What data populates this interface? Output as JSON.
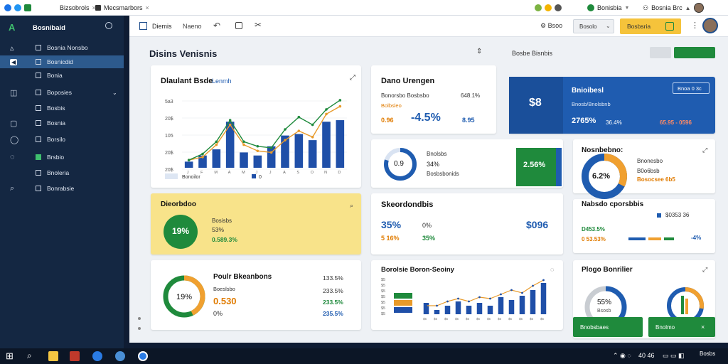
{
  "browser": {
    "tabs": [
      {
        "label": "Bizsobrols"
      },
      {
        "label": "Mecsmarbors"
      },
      {
        "label": "Bonisbia"
      },
      {
        "label": "Bosnia Brc"
      }
    ]
  },
  "sidebar": {
    "brand": "Bosnibaid",
    "items": [
      {
        "label": "Bosnia Nonsbo"
      },
      {
        "label": "Bosnicdid"
      },
      {
        "label": "Bonia"
      },
      {
        "label": "Boposies"
      },
      {
        "label": "Bosbis"
      },
      {
        "label": "Bosnia"
      },
      {
        "label": "Borsilo"
      },
      {
        "label": "Brsbio"
      },
      {
        "label": "Bnoleria"
      },
      {
        "label": "Bonrabsie"
      }
    ]
  },
  "appbar": {
    "tabs": [
      {
        "label": "Diemis"
      },
      {
        "label": "Naeno"
      }
    ],
    "search_label": "Bsoo",
    "select_value": "Bosolo",
    "cta_label": "Bosbsria"
  },
  "page": {
    "title": "Disins Venisnis",
    "right_title": "Bosbe Bisnbis"
  },
  "cards": {
    "chart1": {
      "title": "Dlaulant Bsde",
      "subtitle": "Lenmh",
      "legend1": "Bonoilor",
      "legend2": "0"
    },
    "stats1": {
      "title": "Dano Urengen",
      "l1": "Bonorsbo Bosbsbo",
      "l1v": "648.1%",
      "l2": "Bolbsleo",
      "l3": "0.96",
      "big": "-4.5%",
      "big2": "8.95"
    },
    "blue": {
      "title": "Bnioibesl",
      "button": "Bnoa 0 3c",
      "big": "$8",
      "r1": "Bnosb/Bnolsbnb",
      "r2": "2765%",
      "r3": "36.4%",
      "r4": "65.95 - 0596"
    },
    "donut1": {
      "title": "Bnolsbs",
      "v1": "34%",
      "v2": "Bosbsbonids",
      "center": "0.9",
      "green": "2.56%"
    },
    "donut2": {
      "title": "Nosnbebno:",
      "center": "6.2%",
      "l1": "Bnonesbo",
      "l2": "B0o6bsb",
      "l3": "Bosocsee 6b5"
    },
    "yellow": {
      "title": "Dieorbdoo",
      "center": "19%",
      "l1": "Bosisbs",
      "l2": "53%",
      "l3": "0.589.3%"
    },
    "stats2": {
      "title": "Skeordondbis",
      "v1": "35%",
      "v2": "0%",
      "v3": "$096",
      "v4": "5 16%",
      "v5": "35%"
    },
    "mini": {
      "title": "Nabsdo cporsbbis",
      "l1": "$0353 36",
      "l2": "D453.5%",
      "l3": "0 53.53%",
      "l4": "-4%"
    },
    "donut3": {
      "title": "Poulr Bkeanbons",
      "center": "19%",
      "big": "0.530",
      "small": "0%",
      "v1": "133.5%",
      "v2": "Boeslsbo",
      "v3": "233.5%",
      "v4": "233.5%",
      "v5": "235.5%"
    },
    "chart2": {
      "title": "Borolsie Boron-Seoiny"
    },
    "gauge": {
      "title": "Plogo Bonrilier",
      "center": "55%",
      "sub": "Bsosb",
      "btn1": "Bnobsbaes",
      "btn2": "Bnolmo"
    }
  },
  "taskbar": {
    "time": "Bosbs",
    "date": "40 46"
  },
  "chart_data": [
    {
      "type": "bar",
      "title": "Dlaulant Bsde",
      "yticks": [
        "5a3",
        "20$",
        "105",
        "20$",
        "20$"
      ],
      "categories": [
        "J",
        "F",
        "M",
        "A",
        "M",
        "J",
        "J",
        "A",
        "S",
        "O",
        "N",
        "D"
      ],
      "series": [
        {
          "name": "bars",
          "values": [
            8,
            16,
            24,
            60,
            20,
            16,
            28,
            42,
            44,
            36,
            60,
            62
          ]
        },
        {
          "name": "line-orange",
          "values": [
            10,
            14,
            30,
            56,
            30,
            22,
            20,
            36,
            48,
            40,
            70,
            80
          ]
        },
        {
          "name": "line-green",
          "values": [
            10,
            18,
            34,
            62,
            34,
            28,
            26,
            50,
            66,
            56,
            76,
            88
          ]
        }
      ]
    },
    {
      "type": "bar",
      "title": "Borolsie Boron-Seoiny",
      "yticks": [
        "$5",
        "$5",
        "$5",
        "$5",
        "$5",
        "$5",
        "$5"
      ],
      "series": [
        {
          "name": "bars",
          "values": [
            16,
            6,
            12,
            18,
            12,
            16,
            12,
            24,
            20,
            26,
            34,
            44
          ]
        },
        {
          "name": "line",
          "values": [
            12,
            12,
            18,
            22,
            18,
            24,
            22,
            28,
            34,
            30,
            40,
            48
          ]
        }
      ]
    }
  ]
}
